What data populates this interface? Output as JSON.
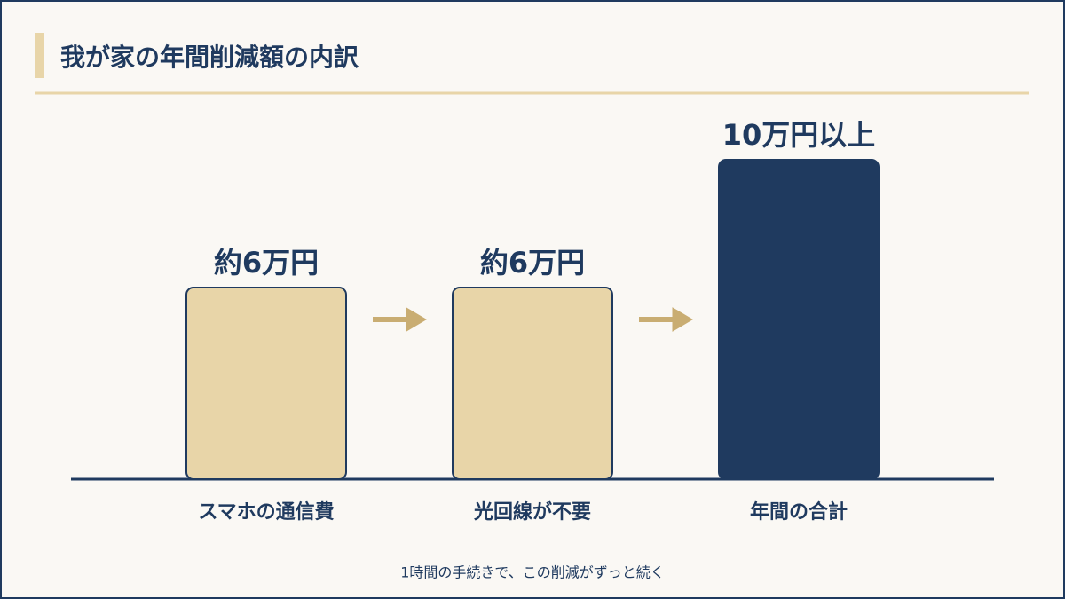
{
  "chart_data": {
    "type": "bar",
    "title": "我が家の年間削減額の内訳",
    "categories": [
      "スマホの通信費",
      "光回線が不要",
      "年間の合計"
    ],
    "values": [
      6,
      6,
      10
    ],
    "value_labels": [
      "約6万円",
      "約6万円",
      "10万円以上"
    ],
    "colors": [
      "#e8d5a8",
      "#e8d5a8",
      "#1f3a5f"
    ],
    "note": "1時間の手続きで、この削減がずっと続く"
  }
}
